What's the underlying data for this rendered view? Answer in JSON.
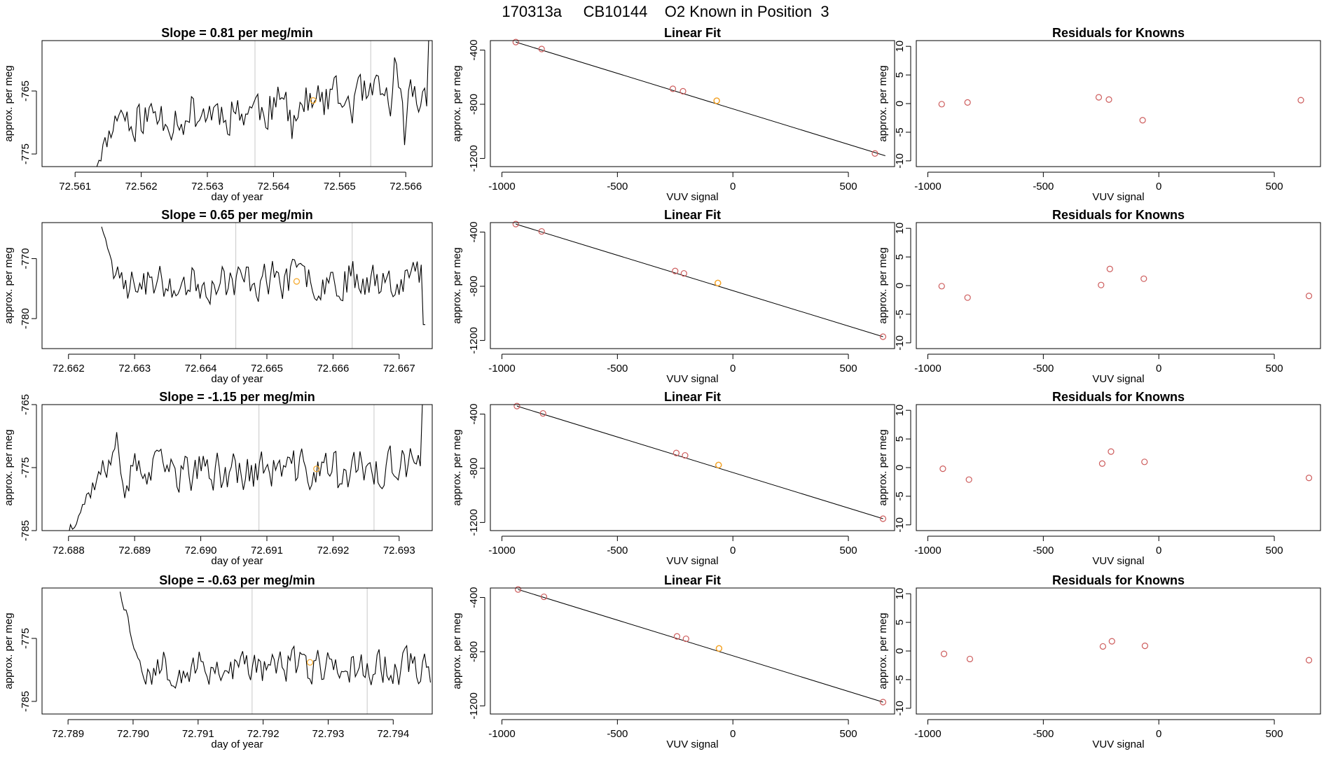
{
  "page": {
    "title": "170313a     CB10144    O2 Known in Position  3"
  },
  "styles": {
    "axis_color": "#000000",
    "trace_color": "#000000",
    "marker_red": "#cd5c5c",
    "marker_orange": "#f5a623",
    "vline_color": "#c8c8c8"
  },
  "chart_data": [
    {
      "type": "line",
      "row": 1,
      "panel": "time",
      "title": "Slope =  0.81  per meg/min",
      "xlabel": "day of year",
      "ylabel": "approx. per meg",
      "xlim": [
        72.5605,
        72.5664
      ],
      "ylim": [
        -777,
        -757
      ],
      "xticks": [
        72.561,
        72.562,
        72.563,
        72.564,
        72.565,
        72.566
      ],
      "xtick_labels": [
        "72.561",
        "72.562",
        "72.563",
        "72.564",
        "72.565",
        "72.566"
      ],
      "yticks": [
        -765,
        -775
      ],
      "ytick_labels": [
        "-765",
        "-775"
      ],
      "series": {
        "x_start": 72.5613,
        "x_end": 72.5664,
        "step_min": 3.04e-05,
        "start_level": -777,
        "plateau_start": 72.5617,
        "mean": -767.5,
        "amp": 5.0,
        "trend": 3.5,
        "end_spike": -757,
        "seed": 11
      },
      "vlines": [
        72.56372,
        72.56547
      ],
      "marker": {
        "x": 72.5646,
        "y": -766.5
      }
    },
    {
      "type": "scatter",
      "row": 1,
      "panel": "fit",
      "title": "Linear Fit",
      "xlabel": "VUV signal",
      "ylabel": "approx. per meg",
      "xlim": [
        -1050,
        700
      ],
      "ylim": [
        -1260,
        -330
      ],
      "xticks": [
        -1000,
        -500,
        0,
        500
      ],
      "xtick_labels": [
        "-1000",
        "-500",
        "0",
        "500"
      ],
      "yticks": [
        -400,
        -800,
        -1200
      ],
      "ytick_labels": [
        "-400",
        "-800",
        "-1200"
      ],
      "line": {
        "x0": -940,
        "y0": -341,
        "x1": 660,
        "y1": -1180
      },
      "points": [
        [
          -940,
          -341
        ],
        [
          -828,
          -392
        ],
        [
          -260,
          -686
        ],
        [
          -216,
          -704
        ],
        [
          -70,
          -774
        ],
        [
          615,
          -1163
        ]
      ],
      "highlight": [
        -70,
        -774
      ]
    },
    {
      "type": "scatter",
      "row": 1,
      "panel": "resid",
      "title": "Residuals for Knowns",
      "xlabel": "VUV signal",
      "ylabel": "approx. per meg",
      "xlim": [
        -1050,
        700
      ],
      "ylim": [
        -11,
        11
      ],
      "xticks": [
        -1000,
        -500,
        0,
        500
      ],
      "xtick_labels": [
        "-1000",
        "-500",
        "0",
        "500"
      ],
      "yticks": [
        10,
        5,
        0,
        -5,
        -10
      ],
      "ytick_labels": [
        "10",
        "5",
        "0",
        "-5",
        "-10"
      ],
      "points": [
        [
          -940,
          -0.1
        ],
        [
          -828,
          0.2
        ],
        [
          -260,
          1.1
        ],
        [
          -216,
          0.7
        ],
        [
          -70,
          -2.9
        ],
        [
          615,
          0.6
        ]
      ]
    },
    {
      "type": "line",
      "row": 2,
      "panel": "time",
      "title": "Slope =  0.65  per meg/min",
      "xlabel": "day of year",
      "ylabel": "approx. per meg",
      "xlim": [
        72.6616,
        72.6675
      ],
      "ylim": [
        -785,
        -764
      ],
      "xticks": [
        72.662,
        72.663,
        72.664,
        72.665,
        72.666,
        72.667
      ],
      "xtick_labels": [
        "72.662",
        "72.663",
        "72.664",
        "72.665",
        "72.666",
        "72.667"
      ],
      "yticks": [
        -770,
        -780
      ],
      "ytick_labels": [
        "-770",
        "-780"
      ],
      "series": {
        "x_start": 72.6625,
        "x_end": 72.6674,
        "step_min": 3.04e-05,
        "start_level": -764,
        "plateau_start": 72.6627,
        "mean": -773.5,
        "amp": 4.5,
        "trend": 1.5,
        "end_spike": -781,
        "seed": 23
      },
      "vlines": [
        72.66453,
        72.66629
      ],
      "marker": {
        "x": 72.66545,
        "y": -773.8
      }
    },
    {
      "type": "scatter",
      "row": 2,
      "panel": "fit",
      "title": "Linear Fit",
      "xlabel": "VUV signal",
      "ylabel": "approx. per meg",
      "xlim": [
        -1050,
        700
      ],
      "ylim": [
        -1260,
        -330
      ],
      "xticks": [
        -1000,
        -500,
        0,
        500
      ],
      "xtick_labels": [
        "-1000",
        "-500",
        "0",
        "500"
      ],
      "yticks": [
        -400,
        -800,
        -1200
      ],
      "ytick_labels": [
        "-400",
        "-800",
        "-1200"
      ],
      "line": {
        "x0": -940,
        "y0": -341,
        "x1": 650,
        "y1": -1172
      },
      "points": [
        [
          -940,
          -341
        ],
        [
          -828,
          -395
        ],
        [
          -250,
          -687
        ],
        [
          -212,
          -705
        ],
        [
          -65,
          -776
        ],
        [
          650,
          -1172
        ]
      ],
      "highlight": [
        -65,
        -776
      ]
    },
    {
      "type": "scatter",
      "row": 2,
      "panel": "resid",
      "title": "Residuals for Knowns",
      "xlabel": "VUV signal",
      "ylabel": "approx. per meg",
      "xlim": [
        -1050,
        700
      ],
      "ylim": [
        -11,
        11
      ],
      "xticks": [
        -1000,
        -500,
        0,
        500
      ],
      "xtick_labels": [
        "-1000",
        "-500",
        "0",
        "500"
      ],
      "yticks": [
        10,
        5,
        0,
        -5,
        -10
      ],
      "ytick_labels": [
        "10",
        "5",
        "0",
        "-5",
        "-10"
      ],
      "points": [
        [
          -940,
          -0.1
        ],
        [
          -828,
          -2.1
        ],
        [
          -250,
          0.1
        ],
        [
          -212,
          2.9
        ],
        [
          -65,
          1.2
        ],
        [
          650,
          -1.8
        ]
      ]
    },
    {
      "type": "line",
      "row": 3,
      "panel": "time",
      "title": "Slope =  -1.15  per meg/min",
      "xlabel": "day of year",
      "ylabel": "approx. per meg",
      "xlim": [
        72.6876,
        72.6935
      ],
      "ylim": [
        -785,
        -765
      ],
      "xticks": [
        72.688,
        72.689,
        72.69,
        72.691,
        72.692,
        72.693
      ],
      "xtick_labels": [
        "72.688",
        "72.689",
        "72.690",
        "72.691",
        "72.692",
        "72.693"
      ],
      "yticks": [
        -765,
        -775,
        -785
      ],
      "ytick_labels": [
        "-765",
        "-775",
        "-785"
      ],
      "series": {
        "x_start": 72.688,
        "x_end": 72.6934,
        "step_min": 3.04e-05,
        "start_level": -785,
        "plateau_start": 72.6885,
        "mean": -775.5,
        "amp": 4.5,
        "trend": 1.0,
        "end_spike": -765,
        "seed": 37
      },
      "vlines": [
        72.69088,
        72.69262
      ],
      "marker": {
        "x": 72.69175,
        "y": -775.2
      }
    },
    {
      "type": "scatter",
      "row": 3,
      "panel": "fit",
      "title": "Linear Fit",
      "xlabel": "VUV signal",
      "ylabel": "approx. per meg",
      "xlim": [
        -1050,
        700
      ],
      "ylim": [
        -1260,
        -330
      ],
      "xticks": [
        -1000,
        -500,
        0,
        500
      ],
      "xtick_labels": [
        "-1000",
        "-500",
        "0",
        "500"
      ],
      "yticks": [
        -400,
        -800,
        -1200
      ],
      "ytick_labels": [
        "-400",
        "-800",
        "-1200"
      ],
      "line": {
        "x0": -935,
        "y0": -341,
        "x1": 650,
        "y1": -1172
      },
      "points": [
        [
          -935,
          -341
        ],
        [
          -822,
          -395
        ],
        [
          -245,
          -687
        ],
        [
          -207,
          -705
        ],
        [
          -62,
          -776
        ],
        [
          650,
          -1172
        ]
      ],
      "highlight": [
        -62,
        -776
      ]
    },
    {
      "type": "scatter",
      "row": 3,
      "panel": "resid",
      "title": "Residuals for Knowns",
      "xlabel": "VUV signal",
      "ylabel": "approx. per meg",
      "xlim": [
        -1050,
        700
      ],
      "ylim": [
        -11,
        11
      ],
      "xticks": [
        -1000,
        -500,
        0,
        500
      ],
      "xtick_labels": [
        "-1000",
        "-500",
        "0",
        "500"
      ],
      "yticks": [
        10,
        5,
        0,
        -5,
        -10
      ],
      "ytick_labels": [
        "10",
        "5",
        "0",
        "-5",
        "-10"
      ],
      "points": [
        [
          -935,
          -0.2
        ],
        [
          -822,
          -2.1
        ],
        [
          -245,
          0.7
        ],
        [
          -207,
          2.8
        ],
        [
          -62,
          1.0
        ],
        [
          650,
          -1.8
        ]
      ]
    },
    {
      "type": "line",
      "row": 4,
      "panel": "time",
      "title": "Slope =  -0.63  per meg/min",
      "xlabel": "day of year",
      "ylabel": "approx. per meg",
      "xlim": [
        72.7886,
        72.7946
      ],
      "ylim": [
        -787,
        -767
      ],
      "xticks": [
        72.789,
        72.79,
        72.791,
        72.792,
        72.793,
        72.794
      ],
      "xtick_labels": [
        "72.789",
        "72.790",
        "72.791",
        "72.792",
        "72.793",
        "72.794"
      ],
      "yticks": [
        -775,
        -785
      ],
      "ytick_labels": [
        "-775",
        "-785"
      ],
      "series": {
        "x_start": 72.7898,
        "x_end": 72.7946,
        "step_min": 3.04e-05,
        "start_level": -767,
        "plateau_start": 72.7901,
        "mean": -779.5,
        "amp": 4.0,
        "trend": 0.5,
        "end_spike": -782,
        "seed": 53
      },
      "vlines": [
        72.79183,
        72.7936
      ],
      "marker": {
        "x": 72.79272,
        "y": -778.8
      }
    },
    {
      "type": "scatter",
      "row": 4,
      "panel": "fit",
      "title": "Linear Fit",
      "xlabel": "VUV signal",
      "ylabel": "approx. per meg",
      "xlim": [
        -1050,
        700
      ],
      "ylim": [
        -1260,
        -330
      ],
      "xticks": [
        -1000,
        -500,
        0,
        500
      ],
      "xtick_labels": [
        "-1000",
        "-500",
        "0",
        "500"
      ],
      "yticks": [
        -400,
        -800,
        -1200
      ],
      "ytick_labels": [
        "-400",
        "-800",
        "-1200"
      ],
      "line": {
        "x0": -930,
        "y0": -341,
        "x1": 650,
        "y1": -1172
      },
      "points": [
        [
          -930,
          -341
        ],
        [
          -818,
          -395
        ],
        [
          -242,
          -687
        ],
        [
          -203,
          -705
        ],
        [
          -60,
          -776
        ],
        [
          650,
          -1172
        ]
      ],
      "highlight": [
        -60,
        -776
      ]
    },
    {
      "type": "scatter",
      "row": 4,
      "panel": "resid",
      "title": "Residuals for Knowns",
      "xlabel": "VUV signal",
      "ylabel": "approx. per meg",
      "xlim": [
        -1050,
        700
      ],
      "ylim": [
        -11,
        11
      ],
      "xticks": [
        -1000,
        -500,
        0,
        500
      ],
      "xtick_labels": [
        "-1000",
        "-500",
        "0",
        "500"
      ],
      "yticks": [
        10,
        5,
        0,
        -5,
        -10
      ],
      "ytick_labels": [
        "10",
        "5",
        "0",
        "-5",
        "-10"
      ],
      "points": [
        [
          -930,
          -0.5
        ],
        [
          -818,
          -1.4
        ],
        [
          -242,
          0.8
        ],
        [
          -203,
          1.7
        ],
        [
          -60,
          0.9
        ],
        [
          650,
          -1.6
        ]
      ]
    }
  ]
}
